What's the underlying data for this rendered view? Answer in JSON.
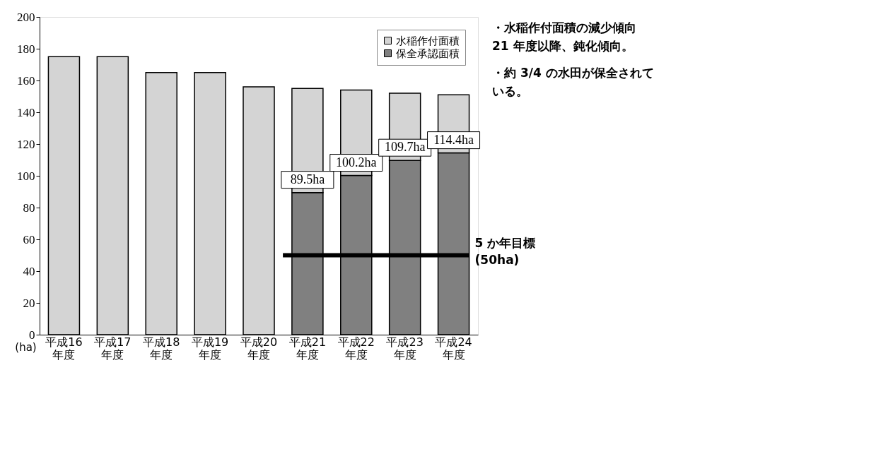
{
  "chart_data": {
    "type": "bar",
    "stacked": true,
    "categories": [
      "平成16\n年度",
      "平成17\n年度",
      "平成18\n年度",
      "平成19\n年度",
      "平成20\n年度",
      "平成21\n年度",
      "平成22\n年度",
      "平成23\n年度",
      "平成24\n年度"
    ],
    "ylabel": "(ha)",
    "series": [
      {
        "name": "保全承認面積",
        "color": "#808080",
        "values": [
          null,
          null,
          null,
          null,
          null,
          89.5,
          100.2,
          109.7,
          114.4
        ],
        "value_labels": [
          null,
          null,
          null,
          null,
          null,
          "89.5ha",
          "100.2ha",
          "109.7ha",
          "114.4ha"
        ]
      },
      {
        "name": "水稲作付面積",
        "color": "#d4d4d4",
        "values": [
          175,
          175,
          165,
          165,
          156,
          65.5,
          53.8,
          42.3,
          36.6
        ]
      }
    ],
    "ylim": [
      0,
      200
    ],
    "yticks": [
      0,
      20,
      40,
      60,
      80,
      100,
      120,
      140,
      160,
      180,
      200
    ],
    "legend": "top right",
    "grid": false,
    "ref_lines": [
      {
        "axis": "y",
        "value": 50,
        "label": "5 か年目標\n(50ha)",
        "color": "#000000"
      }
    ],
    "annotations": [
      "・水稲作付面積の減少傾向21 年度以降、鈍化傾向。",
      "・約 3/4 の水田が保全されている。"
    ]
  }
}
